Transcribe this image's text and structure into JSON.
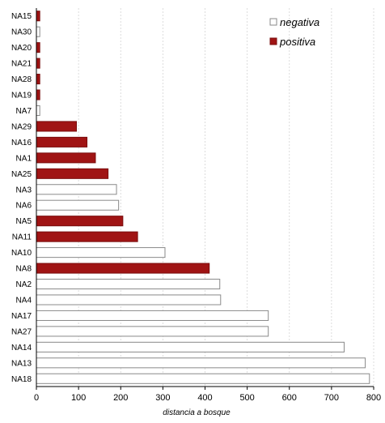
{
  "chart_data": {
    "type": "bar",
    "orientation": "horizontal",
    "title": "",
    "xlabel": "distancia a bosque",
    "ylabel": "",
    "xlim": [
      0,
      800
    ],
    "xticks": [
      0,
      100,
      200,
      300,
      400,
      500,
      600,
      700,
      800
    ],
    "grid": "vertical dashed",
    "legend_position": "top-right",
    "categories": [
      "NA15",
      "NA30",
      "NA20",
      "NA21",
      "NA28",
      "NA19",
      "NA7",
      "NA29",
      "NA16",
      "NA1",
      "NA25",
      "NA3",
      "NA6",
      "NA5",
      "NA11",
      "NA10",
      "NA8",
      "NA2",
      "NA4",
      "NA17",
      "NA27",
      "NA14",
      "NA13",
      "NA18"
    ],
    "values": [
      8,
      8,
      8,
      8,
      8,
      8,
      8,
      95,
      120,
      140,
      170,
      190,
      195,
      205,
      240,
      305,
      410,
      435,
      437,
      550,
      550,
      730,
      780,
      790
    ],
    "groups": [
      "positiva",
      "negativa",
      "positiva",
      "positiva",
      "positiva",
      "positiva",
      "negativa",
      "positiva",
      "positiva",
      "positiva",
      "positiva",
      "negativa",
      "negativa",
      "positiva",
      "positiva",
      "negativa",
      "positiva",
      "negativa",
      "negativa",
      "negativa",
      "negativa",
      "negativa",
      "negativa",
      "negativa"
    ],
    "series": [
      {
        "name": "negativa",
        "color": "#ffffff",
        "stroke": "#8a8a8a"
      },
      {
        "name": "positiva",
        "color": "#a01414",
        "stroke": "#7a0e0e"
      }
    ]
  }
}
